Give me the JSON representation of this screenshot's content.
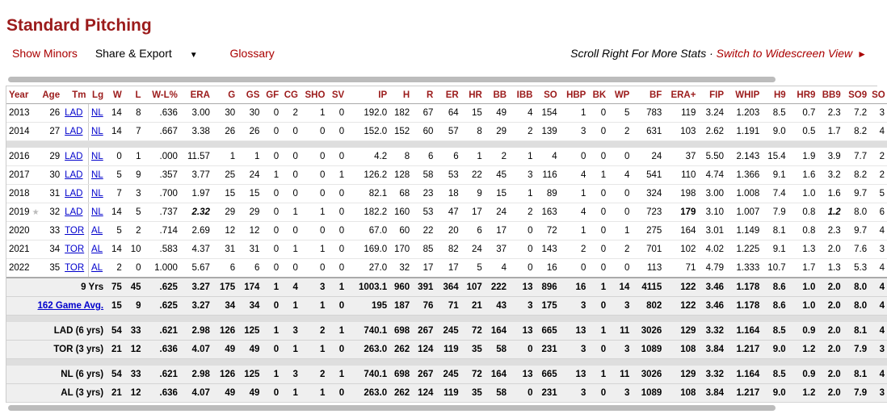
{
  "page": {
    "title": "Standard Pitching",
    "show_minors": "Show Minors",
    "share_export": "Share & Export",
    "glossary": "Glossary",
    "scroll_note": "Scroll Right For More Stats ·",
    "widescreen": "Switch to Widescreen View"
  },
  "table": {
    "headers": [
      "Year",
      "Age",
      "Tm",
      "Lg",
      "W",
      "L",
      "W-L%",
      "ERA",
      "G",
      "GS",
      "GF",
      "CG",
      "SHO",
      "SV",
      "IP",
      "H",
      "R",
      "ER",
      "HR",
      "BB",
      "IBB",
      "SO",
      "HBP",
      "BK",
      "WP",
      "BF",
      "ERA+",
      "FIP",
      "WHIP",
      "H9",
      "HR9",
      "BB9",
      "SO9",
      "SO"
    ],
    "seasons": [
      [
        "2013",
        "26",
        "LAD",
        "NL",
        "14",
        "8",
        ".636",
        "3.00",
        "30",
        "30",
        "0",
        "2",
        "1",
        "0",
        "192.0",
        "182",
        "67",
        "64",
        "15",
        "49",
        "4",
        "154",
        "1",
        "0",
        "5",
        "783",
        "119",
        "3.24",
        "1.203",
        "8.5",
        "0.7",
        "2.3",
        "7.2",
        "3"
      ],
      [
        "2014",
        "27",
        "LAD",
        "NL",
        "14",
        "7",
        ".667",
        "3.38",
        "26",
        "26",
        "0",
        "0",
        "0",
        "0",
        "152.0",
        "152",
        "60",
        "57",
        "8",
        "29",
        "2",
        "139",
        "3",
        "0",
        "2",
        "631",
        "103",
        "2.62",
        "1.191",
        "9.0",
        "0.5",
        "1.7",
        "8.2",
        "4"
      ],
      null,
      [
        "2016",
        "29",
        "LAD",
        "NL",
        "0",
        "1",
        ".000",
        "11.57",
        "1",
        "1",
        "0",
        "0",
        "0",
        "0",
        "4.2",
        "8",
        "6",
        "6",
        "1",
        "2",
        "1",
        "4",
        "0",
        "0",
        "0",
        "24",
        "37",
        "5.50",
        "2.143",
        "15.4",
        "1.9",
        "3.9",
        "7.7",
        "2"
      ],
      [
        "2017",
        "30",
        "LAD",
        "NL",
        "5",
        "9",
        ".357",
        "3.77",
        "25",
        "24",
        "1",
        "0",
        "0",
        "1",
        "126.2",
        "128",
        "58",
        "53",
        "22",
        "45",
        "3",
        "116",
        "4",
        "1",
        "4",
        "541",
        "110",
        "4.74",
        "1.366",
        "9.1",
        "1.6",
        "3.2",
        "8.2",
        "2"
      ],
      [
        "2018",
        "31",
        "LAD",
        "NL",
        "7",
        "3",
        ".700",
        "1.97",
        "15",
        "15",
        "0",
        "0",
        "0",
        "0",
        "82.1",
        "68",
        "23",
        "18",
        "9",
        "15",
        "1",
        "89",
        "1",
        "0",
        "0",
        "324",
        "198",
        "3.00",
        "1.008",
        "7.4",
        "1.0",
        "1.6",
        "9.7",
        "5"
      ],
      [
        "2019",
        "32",
        "LAD",
        "NL",
        "14",
        "5",
        ".737",
        "2.32",
        "29",
        "29",
        "0",
        "1",
        "1",
        "0",
        "182.2",
        "160",
        "53",
        "47",
        "17",
        "24",
        "2",
        "163",
        "4",
        "0",
        "0",
        "723",
        "179",
        "3.10",
        "1.007",
        "7.9",
        "0.8",
        "1.2",
        "8.0",
        "6"
      ],
      [
        "2020",
        "33",
        "TOR",
        "AL",
        "5",
        "2",
        ".714",
        "2.69",
        "12",
        "12",
        "0",
        "0",
        "0",
        "0",
        "67.0",
        "60",
        "22",
        "20",
        "6",
        "17",
        "0",
        "72",
        "1",
        "0",
        "1",
        "275",
        "164",
        "3.01",
        "1.149",
        "8.1",
        "0.8",
        "2.3",
        "9.7",
        "4"
      ],
      [
        "2021",
        "34",
        "TOR",
        "AL",
        "14",
        "10",
        ".583",
        "4.37",
        "31",
        "31",
        "0",
        "1",
        "1",
        "0",
        "169.0",
        "170",
        "85",
        "82",
        "24",
        "37",
        "0",
        "143",
        "2",
        "0",
        "2",
        "701",
        "102",
        "4.02",
        "1.225",
        "9.1",
        "1.3",
        "2.0",
        "7.6",
        "3"
      ],
      [
        "2022",
        "35",
        "TOR",
        "AL",
        "2",
        "0",
        "1.000",
        "5.67",
        "6",
        "6",
        "0",
        "0",
        "0",
        "0",
        "27.0",
        "32",
        "17",
        "17",
        "5",
        "4",
        "0",
        "16",
        "0",
        "0",
        "0",
        "113",
        "71",
        "4.79",
        "1.333",
        "10.7",
        "1.7",
        "1.3",
        "5.3",
        "4"
      ]
    ],
    "totals": [
      [
        "9 Yrs",
        "",
        "",
        "",
        "75",
        "45",
        ".625",
        "3.27",
        "175",
        "174",
        "1",
        "4",
        "3",
        "1",
        "1003.1",
        "960",
        "391",
        "364",
        "107",
        "222",
        "13",
        "896",
        "16",
        "1",
        "14",
        "4115",
        "122",
        "3.46",
        "1.178",
        "8.6",
        "1.0",
        "2.0",
        "8.0",
        "4"
      ],
      [
        "162 Game Avg.",
        "",
        "",
        "",
        "15",
        "9",
        ".625",
        "3.27",
        "34",
        "34",
        "0",
        "1",
        "1",
        "0",
        "195",
        "187",
        "76",
        "71",
        "21",
        "43",
        "3",
        "175",
        "3",
        "0",
        "3",
        "802",
        "122",
        "3.46",
        "1.178",
        "8.6",
        "1.0",
        "2.0",
        "8.0",
        "4"
      ],
      null,
      [
        "LAD (6 yrs)",
        "",
        "",
        "",
        "54",
        "33",
        ".621",
        "2.98",
        "126",
        "125",
        "1",
        "3",
        "2",
        "1",
        "740.1",
        "698",
        "267",
        "245",
        "72",
        "164",
        "13",
        "665",
        "13",
        "1",
        "11",
        "3026",
        "129",
        "3.32",
        "1.164",
        "8.5",
        "0.9",
        "2.0",
        "8.1",
        "4"
      ],
      [
        "TOR (3 yrs)",
        "",
        "",
        "",
        "21",
        "12",
        ".636",
        "4.07",
        "49",
        "49",
        "0",
        "1",
        "1",
        "0",
        "263.0",
        "262",
        "124",
        "119",
        "35",
        "58",
        "0",
        "231",
        "3",
        "0",
        "3",
        "1089",
        "108",
        "3.84",
        "1.217",
        "9.0",
        "1.2",
        "2.0",
        "7.9",
        "3"
      ],
      null,
      [
        "NL (6 yrs)",
        "",
        "",
        "",
        "54",
        "33",
        ".621",
        "2.98",
        "126",
        "125",
        "1",
        "3",
        "2",
        "1",
        "740.1",
        "698",
        "267",
        "245",
        "72",
        "164",
        "13",
        "665",
        "13",
        "1",
        "11",
        "3026",
        "129",
        "3.32",
        "1.164",
        "8.5",
        "0.9",
        "2.0",
        "8.1",
        "4"
      ],
      [
        "AL (3 yrs)",
        "",
        "",
        "",
        "21",
        "12",
        ".636",
        "4.07",
        "49",
        "49",
        "0",
        "1",
        "1",
        "0",
        "263.0",
        "262",
        "124",
        "119",
        "35",
        "58",
        "0",
        "231",
        "3",
        "0",
        "3",
        "1089",
        "108",
        "3.84",
        "1.217",
        "9.0",
        "1.2",
        "2.0",
        "7.9",
        "3"
      ]
    ]
  },
  "colors": {
    "title": "#9b1b1b",
    "link": "#0000cc",
    "accent": "#aa0000"
  },
  "icons": {
    "caret": "caret-down-icon",
    "arrow": "play-arrow-icon",
    "star": "star-icon"
  }
}
